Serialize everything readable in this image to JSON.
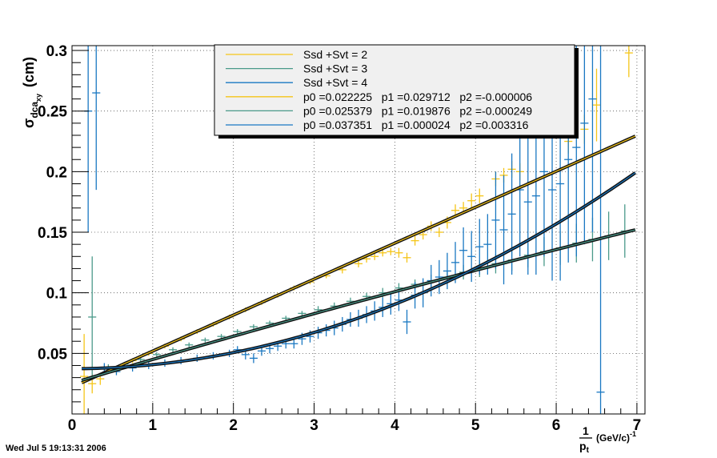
{
  "timestamp": "Wed Jul  5 19:13:31 2006",
  "chart_data": {
    "type": "scatter",
    "xlim": [
      0,
      7.1
    ],
    "ylim": [
      0.0,
      0.304
    ],
    "grid": true,
    "x_ticks": [
      "0",
      "1",
      "2",
      "3",
      "4",
      "5",
      "6",
      "7"
    ],
    "y_ticks": [
      "0.05",
      "0.1",
      "0.15",
      "0.2",
      "0.25",
      "0.3"
    ],
    "ylabel": {
      "base": "σ",
      "sub1": "dca",
      "sub2": "xy",
      "unit": "(cm)"
    },
    "xlabel": {
      "frac_num": "1",
      "frac_den": "p",
      "frac_den_sub": "t",
      "unit": "(GeV/c)",
      "unit_sup": "-1"
    },
    "legend_placement": "top-center",
    "legend": [
      {
        "label": "Ssd +Svt = 2",
        "color": "#f5c518"
      },
      {
        "label": "Ssd +Svt = 3",
        "color": "#4a9a8a"
      },
      {
        "label": "Ssd +Svt = 4",
        "color": "#1a78c2"
      },
      {
        "label": "p0 =0.022225   p1 =0.029712   p2 =-0.000006",
        "color": "#f5c518"
      },
      {
        "label": "p0 =0.025379   p1 =0.019876   p2 =-0.000249",
        "color": "#4a9a8a"
      },
      {
        "label": "p0 =0.037351   p1 =0.000024   p2 =0.003316",
        "color": "#1a78c2"
      }
    ],
    "fits": [
      {
        "name": "Ssd +Svt = 2",
        "p0": 0.022225,
        "p1": 0.029712,
        "p2": -6e-06,
        "color": "#f5c518",
        "x_range": [
          0.12,
          6.98
        ]
      },
      {
        "name": "Ssd +Svt = 3",
        "p0": 0.025379,
        "p1": 0.019876,
        "p2": -0.000249,
        "color": "#4a9a8a",
        "x_range": [
          0.12,
          6.98
        ]
      },
      {
        "name": "Ssd +Svt = 4",
        "p0": 0.037351,
        "p1": 2.4e-05,
        "p2": 0.003316,
        "color": "#1a78c2",
        "x_range": [
          0.12,
          6.98
        ]
      }
    ],
    "series": [
      {
        "name": "Ssd +Svt = 2",
        "color": "#f5c518",
        "points": [
          [
            0.15,
            0.031,
            0.035
          ],
          [
            0.25,
            0.025,
            0.008
          ],
          [
            0.35,
            0.029,
            0.005
          ],
          [
            0.55,
            0.036,
            0.003
          ],
          [
            0.75,
            0.044,
            0.002
          ],
          [
            0.95,
            0.05,
            0.002
          ],
          [
            1.15,
            0.056,
            0.002
          ],
          [
            1.35,
            0.062,
            0.002
          ],
          [
            1.55,
            0.068,
            0.002
          ],
          [
            1.75,
            0.074,
            0.002
          ],
          [
            1.95,
            0.08,
            0.002
          ],
          [
            2.15,
            0.086,
            0.002
          ],
          [
            2.35,
            0.092,
            0.002
          ],
          [
            2.55,
            0.098,
            0.002
          ],
          [
            2.75,
            0.104,
            0.002
          ],
          [
            2.95,
            0.109,
            0.002
          ],
          [
            3.15,
            0.114,
            0.002
          ],
          [
            3.35,
            0.119,
            0.003
          ],
          [
            3.55,
            0.124,
            0.003
          ],
          [
            3.65,
            0.128,
            0.003
          ],
          [
            3.75,
            0.13,
            0.003
          ],
          [
            3.85,
            0.133,
            0.003
          ],
          [
            3.95,
            0.134,
            0.003
          ],
          [
            4.05,
            0.133,
            0.004
          ],
          [
            4.15,
            0.129,
            0.004
          ],
          [
            4.25,
            0.143,
            0.004
          ],
          [
            4.35,
            0.148,
            0.004
          ],
          [
            4.45,
            0.155,
            0.004
          ],
          [
            4.55,
            0.15,
            0.004
          ],
          [
            4.65,
            0.158,
            0.005
          ],
          [
            4.75,
            0.168,
            0.005
          ],
          [
            4.85,
            0.17,
            0.005
          ],
          [
            4.95,
            0.176,
            0.006
          ],
          [
            5.05,
            0.18,
            0.006
          ],
          [
            5.25,
            0.194,
            0.006
          ],
          [
            5.35,
            0.197,
            0.006
          ],
          [
            5.45,
            0.202,
            0.007
          ],
          [
            5.55,
            0.2,
            0.007
          ],
          [
            6.15,
            0.225,
            0.01
          ],
          [
            6.35,
            0.235,
            0.012
          ],
          [
            6.5,
            0.255,
            0.03
          ],
          [
            6.9,
            0.298,
            0.02
          ]
        ]
      },
      {
        "name": "Ssd +Svt = 3",
        "color": "#4a9a8a",
        "points": [
          [
            0.25,
            0.08,
            0.05
          ],
          [
            0.45,
            0.038,
            0.003
          ],
          [
            0.65,
            0.041,
            0.002
          ],
          [
            0.85,
            0.045,
            0.002
          ],
          [
            1.05,
            0.049,
            0.002
          ],
          [
            1.25,
            0.053,
            0.002
          ],
          [
            1.45,
            0.057,
            0.002
          ],
          [
            1.65,
            0.061,
            0.002
          ],
          [
            1.85,
            0.064,
            0.002
          ],
          [
            2.05,
            0.068,
            0.002
          ],
          [
            2.25,
            0.072,
            0.002
          ],
          [
            2.45,
            0.075,
            0.002
          ],
          [
            2.65,
            0.079,
            0.002
          ],
          [
            2.85,
            0.083,
            0.002
          ],
          [
            3.05,
            0.086,
            0.003
          ],
          [
            3.25,
            0.089,
            0.003
          ],
          [
            3.45,
            0.093,
            0.003
          ],
          [
            3.65,
            0.097,
            0.003
          ],
          [
            3.85,
            0.1,
            0.004
          ],
          [
            4.05,
            0.104,
            0.004
          ],
          [
            4.25,
            0.107,
            0.004
          ],
          [
            4.45,
            0.11,
            0.005
          ],
          [
            4.65,
            0.113,
            0.005
          ],
          [
            4.85,
            0.117,
            0.006
          ],
          [
            5.05,
            0.12,
            0.007
          ],
          [
            5.25,
            0.124,
            0.008
          ],
          [
            5.45,
            0.127,
            0.009
          ],
          [
            5.65,
            0.131,
            0.01
          ],
          [
            5.85,
            0.134,
            0.012
          ],
          [
            6.05,
            0.137,
            0.014
          ],
          [
            6.25,
            0.141,
            0.016
          ],
          [
            6.45,
            0.144,
            0.018
          ],
          [
            6.65,
            0.147,
            0.02
          ],
          [
            6.85,
            0.151,
            0.022
          ]
        ]
      },
      {
        "name": "Ssd +Svt = 4",
        "color": "#1a78c2",
        "points": [
          [
            0.2,
            0.25,
            0.1
          ],
          [
            0.3,
            0.265,
            0.08
          ],
          [
            0.4,
            0.038,
            0.004
          ],
          [
            0.55,
            0.035,
            0.003
          ],
          [
            0.75,
            0.038,
            0.003
          ],
          [
            0.95,
            0.04,
            0.003
          ],
          [
            1.15,
            0.042,
            0.003
          ],
          [
            1.35,
            0.044,
            0.003
          ],
          [
            1.55,
            0.046,
            0.003
          ],
          [
            1.75,
            0.048,
            0.003
          ],
          [
            1.95,
            0.05,
            0.003
          ],
          [
            2.05,
            0.053,
            0.003
          ],
          [
            2.15,
            0.049,
            0.004
          ],
          [
            2.25,
            0.046,
            0.004
          ],
          [
            2.35,
            0.052,
            0.004
          ],
          [
            2.45,
            0.054,
            0.004
          ],
          [
            2.55,
            0.056,
            0.004
          ],
          [
            2.65,
            0.058,
            0.004
          ],
          [
            2.75,
            0.058,
            0.004
          ],
          [
            2.85,
            0.062,
            0.005
          ],
          [
            2.95,
            0.064,
            0.005
          ],
          [
            3.05,
            0.067,
            0.005
          ],
          [
            3.15,
            0.069,
            0.005
          ],
          [
            3.25,
            0.071,
            0.006
          ],
          [
            3.35,
            0.074,
            0.006
          ],
          [
            3.45,
            0.078,
            0.006
          ],
          [
            3.55,
            0.079,
            0.007
          ],
          [
            3.65,
            0.082,
            0.007
          ],
          [
            3.75,
            0.085,
            0.008
          ],
          [
            3.85,
            0.088,
            0.008
          ],
          [
            3.95,
            0.091,
            0.009
          ],
          [
            4.05,
            0.094,
            0.009
          ],
          [
            4.15,
            0.076,
            0.01
          ],
          [
            4.25,
            0.098,
            0.011
          ],
          [
            4.35,
            0.1,
            0.012
          ],
          [
            4.45,
            0.11,
            0.013
          ],
          [
            4.55,
            0.113,
            0.014
          ],
          [
            4.65,
            0.118,
            0.015
          ],
          [
            4.75,
            0.125,
            0.017
          ],
          [
            4.85,
            0.135,
            0.019
          ],
          [
            4.95,
            0.13,
            0.021
          ],
          [
            5.05,
            0.138,
            0.023
          ],
          [
            5.15,
            0.14,
            0.025
          ],
          [
            5.25,
            0.16,
            0.04
          ],
          [
            5.35,
            0.152,
            0.045
          ],
          [
            5.45,
            0.165,
            0.05
          ],
          [
            5.55,
            0.185,
            0.055
          ],
          [
            5.65,
            0.175,
            0.06
          ],
          [
            5.75,
            0.18,
            0.065
          ],
          [
            5.85,
            0.2,
            0.07
          ],
          [
            5.95,
            0.185,
            0.075
          ],
          [
            6.05,
            0.19,
            0.08
          ],
          [
            6.15,
            0.21,
            0.085
          ],
          [
            6.25,
            0.22,
            0.09
          ],
          [
            6.35,
            0.24,
            0.1
          ],
          [
            6.45,
            0.26,
            0.11
          ],
          [
            6.55,
            0.018,
            0.3
          ]
        ]
      }
    ]
  }
}
